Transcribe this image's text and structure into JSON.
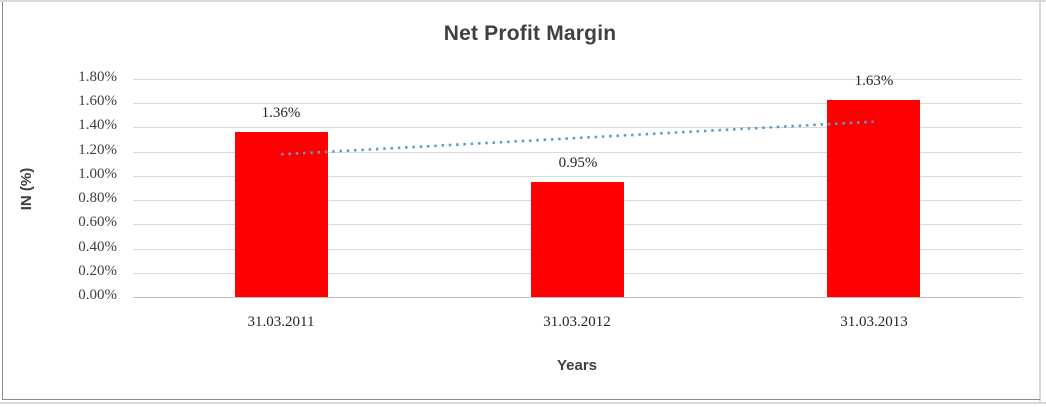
{
  "chart_data": {
    "type": "bar",
    "title": "Net Profit Margin",
    "xlabel": "Years",
    "ylabel": "IN (%)",
    "categories": [
      "31.03.2011",
      "31.03.2012",
      "31.03.2013"
    ],
    "values": [
      1.36,
      0.95,
      1.63
    ],
    "data_labels": [
      "1.36%",
      "0.95%",
      "1.63%"
    ],
    "ylim": [
      0,
      1.8
    ],
    "ytick_step": 0.2,
    "ytick_labels": [
      "0.00%",
      "0.20%",
      "0.40%",
      "0.60%",
      "0.80%",
      "1.00%",
      "1.20%",
      "1.40%",
      "1.60%",
      "1.80%"
    ],
    "grid": true,
    "legend": "none",
    "colors": {
      "bar": "#FF0000",
      "trendline": "#5B9BD5",
      "gridline": "#D9D9D9",
      "axis_line": "#BFBFBF",
      "text": "#404040"
    },
    "trendline": {
      "type": "linear",
      "style": "dotted",
      "start_value": 1.178,
      "end_value": 1.448
    }
  }
}
